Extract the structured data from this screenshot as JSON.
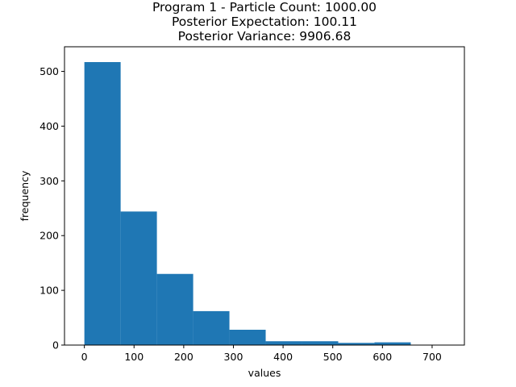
{
  "chart_data": {
    "type": "bar",
    "title_lines": [
      "Program 1 - Particle Count: 1000.00",
      "Posterior Expectation: 100.11",
      "Posterior Variance: 9906.68"
    ],
    "xlabel": "values",
    "ylabel": "frequency",
    "xlim": [
      -40,
      765
    ],
    "ylim": [
      0,
      545
    ],
    "xticks": [
      0,
      100,
      200,
      300,
      400,
      500,
      600,
      700
    ],
    "yticks": [
      0,
      100,
      200,
      300,
      400,
      500
    ],
    "bin_edges": [
      0,
      73,
      146,
      219,
      292,
      365,
      438,
      511,
      584,
      657,
      730
    ],
    "values": [
      517,
      244,
      130,
      62,
      28,
      7,
      7,
      4,
      5,
      0
    ],
    "bar_color": "#1f77b4",
    "grid": false,
    "legend": "none"
  }
}
